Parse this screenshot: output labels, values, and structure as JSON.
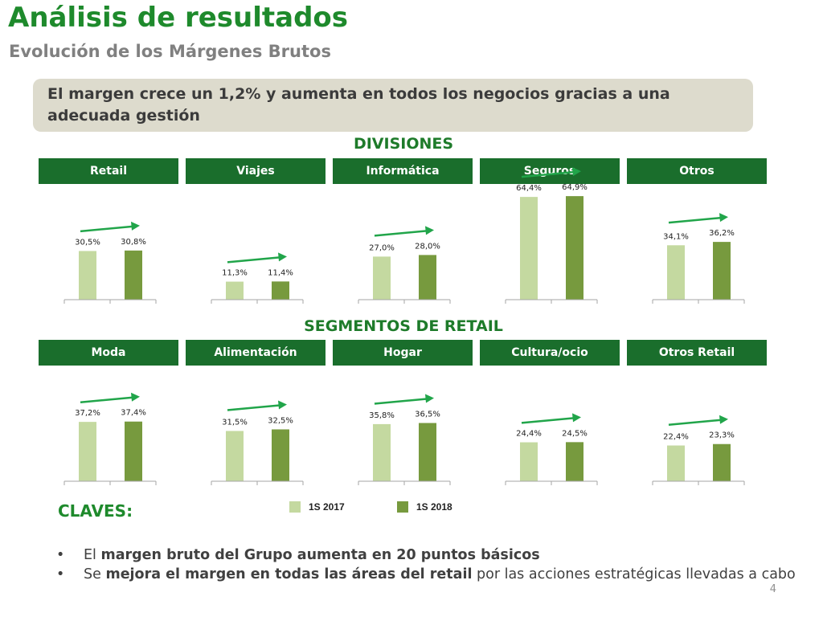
{
  "title": "Análisis de resultados",
  "subtitle": "Evolución de los Márgenes Brutos",
  "banner_text": "El margen crece un 1,2% y aumenta en todos los negocios gracias a una adecuada gestión",
  "sections": {
    "divisions_label": "DIVISIONES",
    "retail_segments_label": "SEGMENTOS DE RETAIL"
  },
  "colors": {
    "title": "#1e8a2c",
    "header_bg": "#1a6e2c",
    "bar_2017": "#c4d9a0",
    "bar_2018": "#779a3e",
    "arrow": "#21a54a",
    "banner_bg": "#dddbcd"
  },
  "legend": {
    "s2017": "1S 2017",
    "s2018": "1S 2018"
  },
  "chart_data": [
    {
      "type": "bar",
      "title": "Retail",
      "categories": [
        "1S 2017",
        "1S 2018"
      ],
      "values": [
        30.5,
        30.8
      ],
      "labels": [
        "30,5%",
        "30,8%"
      ],
      "trend": "up"
    },
    {
      "type": "bar",
      "title": "Viajes",
      "categories": [
        "1S 2017",
        "1S 2018"
      ],
      "values": [
        11.3,
        11.4
      ],
      "labels": [
        "11,3%",
        "11,4%"
      ],
      "trend": "up"
    },
    {
      "type": "bar",
      "title": "Informática",
      "categories": [
        "1S 2017",
        "1S 2018"
      ],
      "values": [
        27.0,
        28.0
      ],
      "labels": [
        "27,0%",
        "28,0%"
      ],
      "trend": "up"
    },
    {
      "type": "bar",
      "title": "Seguros",
      "categories": [
        "1S 2017",
        "1S 2018"
      ],
      "values": [
        64.4,
        64.9
      ],
      "labels": [
        "64,4%",
        "64,9%"
      ],
      "trend": "up"
    },
    {
      "type": "bar",
      "title": "Otros",
      "categories": [
        "1S 2017",
        "1S 2018"
      ],
      "values": [
        34.1,
        36.2
      ],
      "labels": [
        "34,1%",
        "36,2%"
      ],
      "trend": "up"
    },
    {
      "type": "bar",
      "title": "Moda",
      "categories": [
        "1S 2017",
        "1S 2018"
      ],
      "values": [
        37.2,
        37.4
      ],
      "labels": [
        "37,2%",
        "37,4%"
      ],
      "trend": "up"
    },
    {
      "type": "bar",
      "title": "Alimentación",
      "categories": [
        "1S 2017",
        "1S 2018"
      ],
      "values": [
        31.5,
        32.5
      ],
      "labels": [
        "31,5%",
        "32,5%"
      ],
      "trend": "up"
    },
    {
      "type": "bar",
      "title": "Hogar",
      "categories": [
        "1S 2017",
        "1S 2018"
      ],
      "values": [
        35.8,
        36.5
      ],
      "labels": [
        "35,8%",
        "36,5%"
      ],
      "trend": "up"
    },
    {
      "type": "bar",
      "title": "Cultura/ocio",
      "categories": [
        "1S 2017",
        "1S 2018"
      ],
      "values": [
        24.4,
        24.5
      ],
      "labels": [
        "24,4%",
        "24,5%"
      ],
      "trend": "up"
    },
    {
      "type": "bar",
      "title": "Otros Retail",
      "categories": [
        "1S 2017",
        "1S 2018"
      ],
      "values": [
        22.4,
        23.3
      ],
      "labels": [
        "22,4%",
        "23,3%"
      ],
      "trend": "up"
    }
  ],
  "claves": {
    "heading": "CLAVES:",
    "bullet_symbol": "•",
    "items": [
      {
        "pre": "El ",
        "bold": "margen bruto del Grupo aumenta en 20 puntos básicos",
        "post": ""
      },
      {
        "pre": "Se ",
        "bold": "mejora el margen en todas las áreas del retail",
        "post": " por las acciones estratégicas llevadas a cabo"
      }
    ]
  },
  "page_number": "4"
}
